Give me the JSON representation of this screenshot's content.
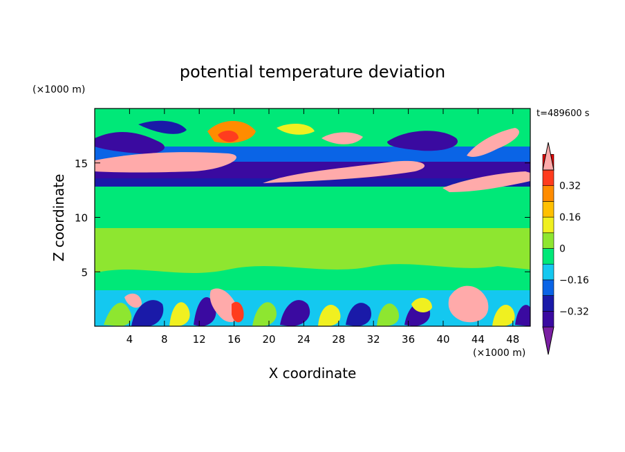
{
  "chart_data": {
    "type": "heatmap",
    "title": "potential temperature deviation",
    "xlabel": "X coordinate",
    "ylabel": "Z coordinate",
    "x_unit_label": "(×1000 m)",
    "y_unit_label": "(×1000 m)",
    "time_label": "t=489600 s",
    "xlim": [
      0,
      50
    ],
    "ylim": [
      0,
      20
    ],
    "x_ticks": [
      4,
      8,
      12,
      16,
      20,
      24,
      28,
      32,
      36,
      40,
      44,
      48
    ],
    "y_ticks": [
      5,
      10,
      15
    ],
    "colorbar": {
      "levels": [
        -0.48,
        -0.4,
        -0.32,
        -0.24,
        -0.16,
        -0.08,
        0,
        0.08,
        0.16,
        0.24,
        0.32,
        0.4,
        0.48
      ],
      "labels": [
        "0.32",
        "0.16",
        "0",
        "−0.16",
        "−0.32"
      ],
      "label_values": [
        0.32,
        0.16,
        0,
        -0.16,
        -0.32
      ],
      "colors": [
        "#7a1fa2",
        "#3a0aa0",
        "#1a1aa8",
        "#0a64e6",
        "#14c8f0",
        "#00e878",
        "#8ee630",
        "#f0f020",
        "#ffc000",
        "#ff8c00",
        "#ff3c1e",
        "#e60000",
        "#ffaaaa"
      ]
    }
  }
}
